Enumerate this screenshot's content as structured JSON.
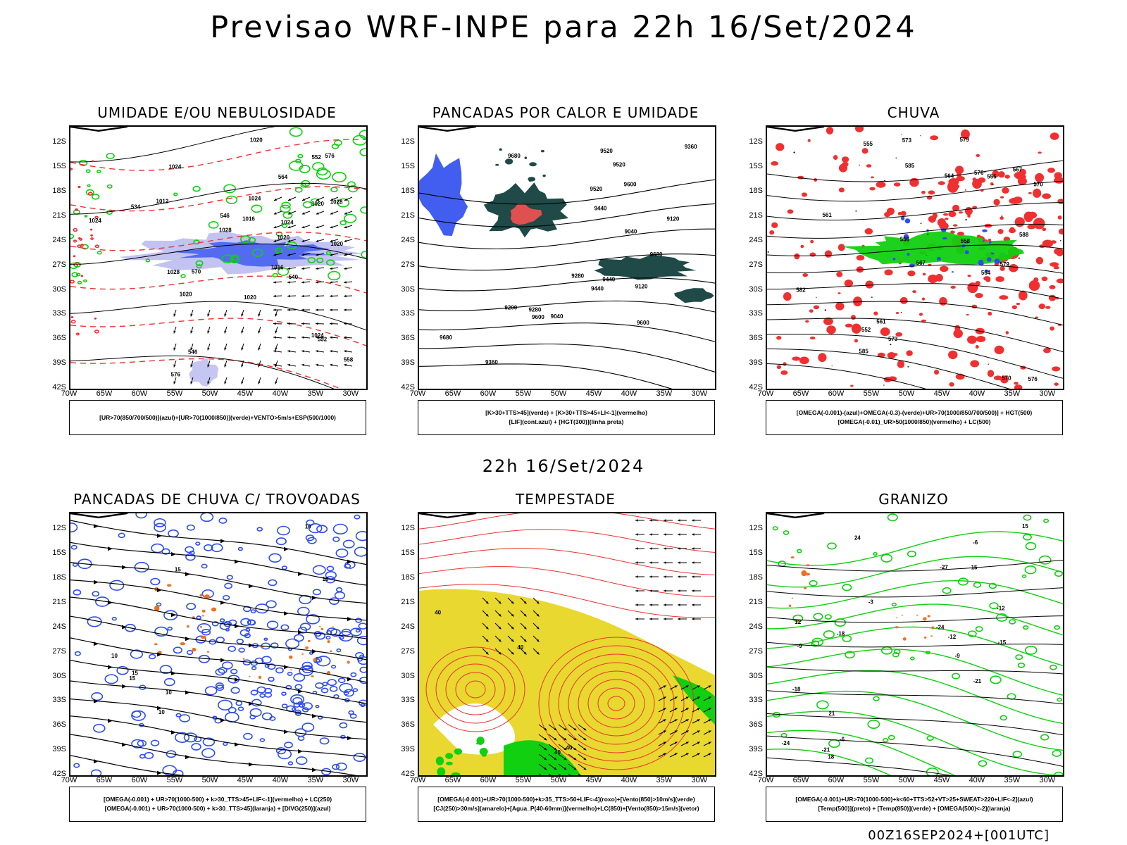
{
  "main_title": "Previsao WRF-INPE  para 22h 16/Set/2024",
  "mid_label": "22h 16/Set/2024",
  "footer": "00Z16SEP2024+[001UTC]",
  "lat_labels": [
    "12S",
    "15S",
    "18S",
    "21S",
    "24S",
    "27S",
    "30S",
    "33S",
    "36S",
    "39S",
    "42S"
  ],
  "lon_labels": [
    "70W",
    "65W",
    "60W",
    "55W",
    "50W",
    "45W",
    "40W",
    "35W",
    "30W"
  ],
  "colors": {
    "blue": "#2e4df0",
    "green": "#10d010",
    "red": "#f03030",
    "orange": "#f07020",
    "yellow": "#e8d830",
    "darkteal": "#1f4a48",
    "lavender": "#b8b8f0"
  },
  "panels": [
    {
      "title": "UMIDADE E/OU NEBULOSIDADE",
      "legend": [
        "[UR>70(850/700/500)](azul)+[UR>70(1000/850)](verde)+VENTO>5m/s+ESP(500/1000)"
      ],
      "contour_labels": [
        "1012",
        "1016",
        "1020",
        "1024",
        "1020",
        "1016",
        "1024",
        "1020",
        "1024",
        "1020",
        "1028",
        "1024",
        "1020",
        "1028",
        "1024",
        "1028",
        "1020",
        "576",
        "570",
        "576",
        "564",
        "558",
        "552",
        "546",
        "540",
        "534",
        "552",
        "546"
      ]
    },
    {
      "title": "PANCADAS POR CALOR E UMIDADE",
      "legend": [
        "[K>30+TTS>45](verde)  +  [K>30+TTS>45+LI<-1](vermelho)",
        "[LIF](cont.azul)  +  [HGT(300)](linha preta)"
      ],
      "contour_labels": [
        "9680",
        "9680",
        "9680",
        "9600",
        "9520",
        "9600",
        "9440",
        "9520",
        "9440",
        "9360",
        "9280",
        "9280",
        "9200",
        "9120",
        "9040",
        "9600",
        "9520",
        "9440",
        "9360",
        "9120",
        "9040"
      ]
    },
    {
      "title": "CHUVA",
      "legend": [
        "[OMEGA(-0.001)-(azul)+OMEGA(-0.3)-(verde)+UR>70(1000/850/700/500)]  +  HGT(500)",
        "[OMEGA(-0.01)_UR>50(1000/850)(vermelho)  +  LC(500)"
      ],
      "contour_labels": [
        "585",
        "582",
        "579",
        "576",
        "573",
        "570",
        "567",
        "564",
        "561",
        "558",
        "555",
        "552",
        "588",
        "585",
        "579",
        "576",
        "573",
        "570",
        "567",
        "564",
        "561",
        "558",
        "555"
      ]
    },
    {
      "title": "PANCADAS DE CHUVA C/ TROVOADAS",
      "legend": [
        "[OMEGA(-0.001)  +  UR>70(1000-500)  +  k>30_TTS>45+LIF<-1](vermelho)  +  LC(250)",
        "[OMEGA(-0.001)  +  UR>70(1000-500)  +  k>30_TTS>45](laranja)  +  [DIVG(250)](azul)"
      ],
      "contour_labels": [
        "10",
        "10",
        "15",
        "10",
        "15",
        "10",
        "15",
        "10"
      ]
    },
    {
      "title": "TEMPESTADE",
      "legend": [
        "[OMEGA(-0.001)+UR>70(1000-500)+k>35_TTS>50+LIF<-4](roxo)+[Vento(850)>10m/s](verde)",
        "[CJ(250)>30m/s](amarelo)+[Agua_P(40-60mm)](vermelho)+LC(850)+[Vento(850)>15m/s](vetor)"
      ],
      "contour_labels": [
        "40",
        "40",
        "40",
        "40"
      ]
    },
    {
      "title": "GRANIZO",
      "legend": [
        "[OMEGA(-0.001)+UR>70(1000-500)+k<60+TTS>52+VT>25+SWEAT>220+LIF<-2](azul)",
        "[Temp(500)](preto)  +  [Temp(850)](verde)  +  [OMEGA(500)<-2](laranja)"
      ],
      "contour_labels": [
        "-3",
        "-6",
        "-9",
        "-12",
        "-15",
        "-18",
        "-21",
        "-24",
        "-27",
        "-6",
        "-9",
        "-12",
        "-15",
        "-18",
        "-21",
        "-24",
        "12",
        "15",
        "18",
        "21",
        "24"
      ]
    }
  ]
}
